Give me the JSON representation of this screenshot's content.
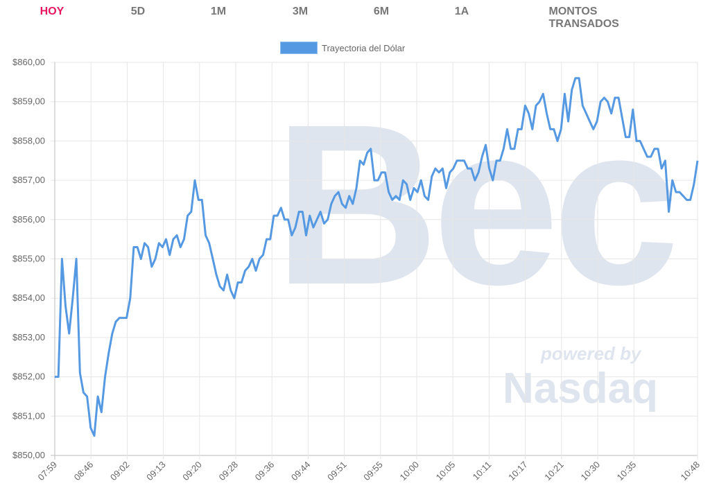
{
  "tabs": [
    {
      "label": "HOY",
      "active": true
    },
    {
      "label": "5D"
    },
    {
      "label": "1M"
    },
    {
      "label": "3M"
    },
    {
      "label": "6M"
    },
    {
      "label": "1A"
    },
    {
      "label": "MONTOS TRANSADOS"
    }
  ],
  "watermark": {
    "brand": "Bec",
    "powered": "powered by",
    "partner": "Nasdaq"
  },
  "colors": {
    "accent": "#e8175d",
    "line": "#5599e2"
  },
  "chart_data": {
    "type": "line",
    "title": "",
    "legend": [
      "Trayectoria del Dólar"
    ],
    "legend_position": "top-center",
    "ylim": [
      850,
      860
    ],
    "yticks": [
      "$850,00",
      "$851,00",
      "$852,00",
      "$853,00",
      "$854,00",
      "$855,00",
      "$856,00",
      "$857,00",
      "$858,00",
      "$859,00",
      "$860,00"
    ],
    "xticks": [
      "07:59",
      "08:46",
      "09:02",
      "09:13",
      "09:20",
      "09:28",
      "09:36",
      "09:44",
      "09:51",
      "09:55",
      "10:00",
      "10:05",
      "10:11",
      "10:17",
      "10:21",
      "10:30",
      "10:35",
      "10:48"
    ],
    "grid": true,
    "series": [
      {
        "name": "Trayectoria del Dólar",
        "values": [
          852.0,
          852.0,
          855.0,
          853.8,
          853.1,
          854.0,
          855.0,
          852.1,
          851.6,
          851.5,
          850.7,
          850.5,
          851.5,
          851.1,
          852.0,
          852.6,
          853.1,
          853.4,
          853.5,
          853.5,
          853.5,
          854.0,
          855.3,
          855.3,
          855.0,
          855.4,
          855.3,
          854.8,
          855.0,
          855.4,
          855.3,
          855.5,
          855.1,
          855.5,
          855.6,
          855.3,
          855.5,
          856.1,
          856.2,
          857.0,
          856.5,
          856.5,
          855.6,
          855.4,
          855.0,
          854.6,
          854.3,
          854.2,
          854.6,
          854.2,
          854.0,
          854.4,
          854.4,
          854.7,
          854.8,
          855.0,
          854.7,
          855.0,
          855.1,
          855.5,
          855.5,
          856.1,
          856.1,
          856.3,
          856.0,
          856.0,
          855.6,
          855.8,
          856.2,
          856.2,
          855.6,
          856.1,
          855.8,
          856.0,
          856.2,
          855.9,
          856.0,
          856.4,
          856.6,
          856.7,
          856.4,
          856.3,
          856.6,
          856.4,
          856.8,
          857.5,
          857.4,
          857.7,
          857.8,
          857.0,
          857.0,
          857.2,
          857.2,
          856.7,
          856.5,
          856.6,
          856.5,
          857.0,
          856.9,
          856.5,
          856.8,
          856.7,
          857.0,
          856.6,
          856.5,
          857.1,
          857.3,
          857.2,
          857.3,
          856.8,
          857.2,
          857.3,
          857.5,
          857.5,
          857.5,
          857.3,
          857.3,
          857.0,
          857.2,
          857.6,
          857.9,
          857.3,
          857.0,
          857.5,
          857.5,
          857.8,
          858.3,
          857.8,
          857.8,
          858.3,
          858.3,
          858.9,
          858.7,
          858.3,
          858.9,
          859.0,
          859.2,
          858.7,
          858.3,
          858.3,
          858.0,
          858.3,
          859.2,
          858.5,
          859.3,
          859.6,
          859.6,
          858.9,
          858.7,
          858.5,
          858.3,
          858.5,
          859.0,
          859.1,
          859.0,
          858.7,
          859.1,
          859.1,
          858.6,
          858.1,
          858.1,
          858.8,
          858.0,
          858.0,
          857.8,
          857.6,
          857.6,
          857.8,
          857.8,
          857.3,
          857.5,
          856.2,
          857.0,
          856.7,
          856.7,
          856.6,
          856.5,
          856.5,
          856.9,
          857.5
        ]
      }
    ]
  }
}
